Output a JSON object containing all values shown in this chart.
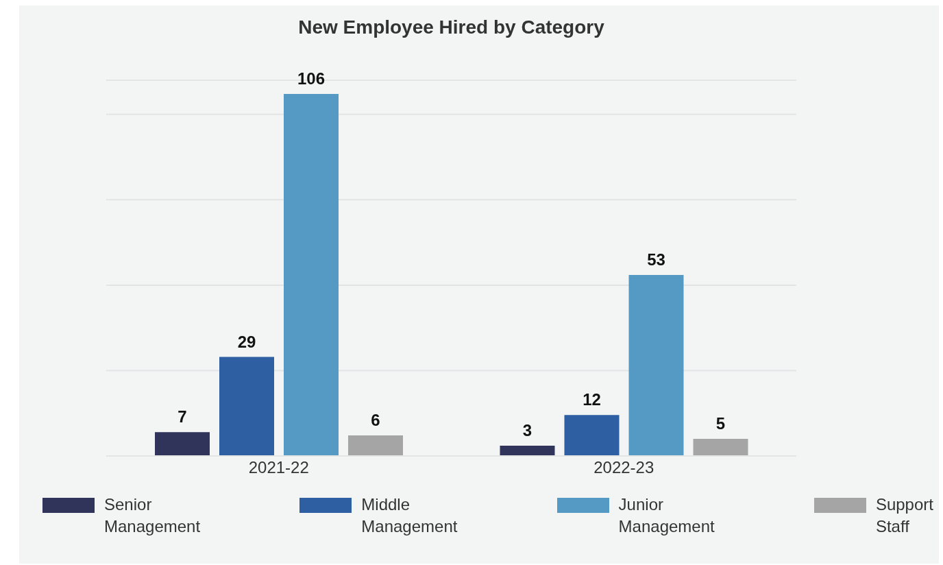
{
  "chart_data": {
    "type": "bar",
    "title": "New Employee Hired by Category",
    "categories": [
      "2021-22",
      "2022-23"
    ],
    "series": [
      {
        "name": "Senior Management",
        "color": "#30345a",
        "values": [
          7,
          3
        ]
      },
      {
        "name": "Middle Management",
        "color": "#2e5fa3",
        "values": [
          29,
          12
        ]
      },
      {
        "name": "Junior Management",
        "color": "#5599c5",
        "values": [
          106,
          53
        ]
      },
      {
        "name": "Support Staff",
        "color": "#a5a5a5",
        "values": [
          6,
          5
        ]
      }
    ],
    "ylim": [
      0,
      110
    ],
    "tick_labels": "x",
    "grid": "y",
    "data_labels": true,
    "legend": "bottom"
  }
}
